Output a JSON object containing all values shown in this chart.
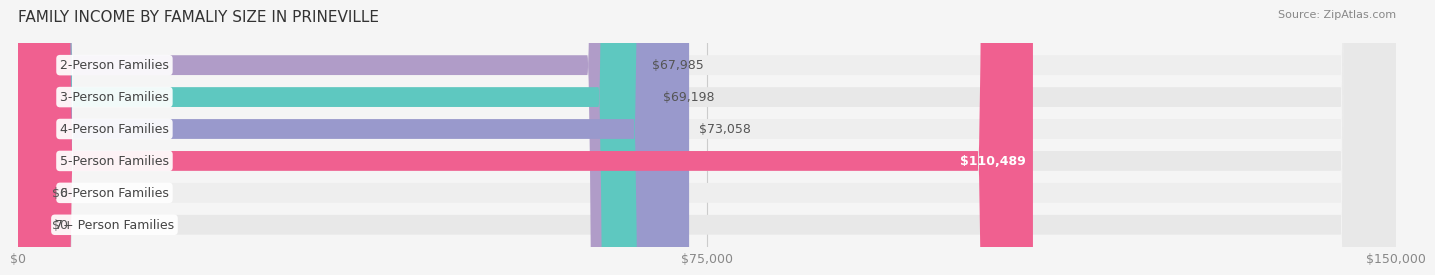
{
  "title": "FAMILY INCOME BY FAMALIY SIZE IN PRINEVILLE",
  "source": "Source: ZipAtlas.com",
  "categories": [
    "2-Person Families",
    "3-Person Families",
    "4-Person Families",
    "5-Person Families",
    "6-Person Families",
    "7+ Person Families"
  ],
  "values": [
    67985,
    69198,
    73058,
    110489,
    0,
    0
  ],
  "bar_colors": [
    "#b09cc8",
    "#5ec8c0",
    "#9999cc",
    "#f06090",
    "#f5c89a",
    "#f0a098"
  ],
  "bg_colors": [
    "#eeeeee",
    "#e8e8e8",
    "#eeeeee",
    "#e8e8e8",
    "#eeeeee",
    "#e8e8e8"
  ],
  "value_labels": [
    "$67,985",
    "$69,198",
    "$73,058",
    "$110,489",
    "$0",
    "$0"
  ],
  "xmax": 150000,
  "xticks": [
    0,
    75000,
    150000
  ],
  "xtick_labels": [
    "$0",
    "$75,000",
    "$150,000"
  ],
  "label_fontsize": 9,
  "title_fontsize": 11,
  "bar_height": 0.62,
  "background_color": "#f5f5f5"
}
